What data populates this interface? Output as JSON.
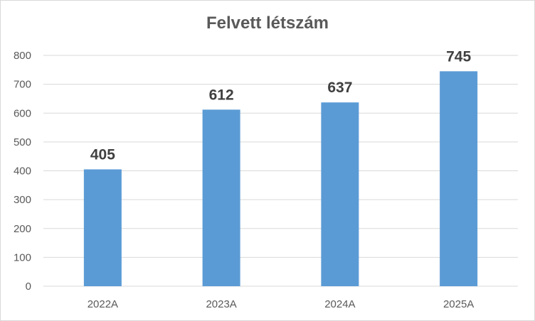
{
  "chart_data": {
    "type": "bar",
    "title": "Felvett létszám",
    "categories": [
      "2022A",
      "2023A",
      "2024A",
      "2025A"
    ],
    "values": [
      405,
      612,
      637,
      745
    ],
    "ylim": [
      0,
      800
    ],
    "yticks": [
      "0",
      "100",
      "200",
      "300",
      "400",
      "500",
      "600",
      "700",
      "800"
    ],
    "xlabel": "",
    "ylabel": "",
    "grid": true,
    "legend": "none",
    "bar_color": "#5b9bd5",
    "grid_color": "#d9d9d9"
  }
}
